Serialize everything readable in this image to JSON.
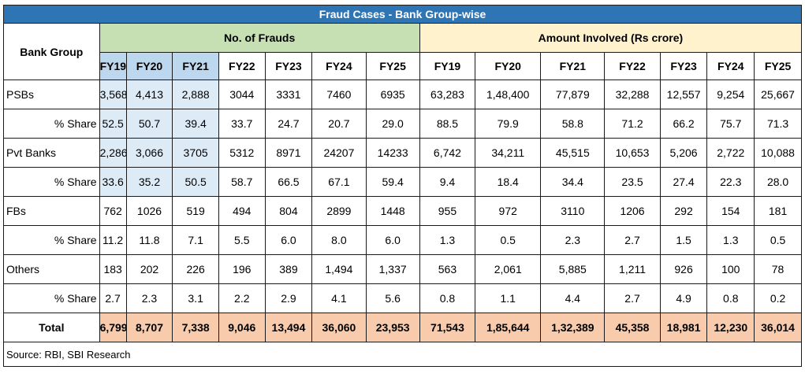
{
  "title": "Fraud Cases - Bank Group-wise",
  "row_header": "Bank Group",
  "group_frauds": "No. of Frauds",
  "group_amount": "Amount Involved (Rs crore)",
  "years": [
    "FY19",
    "FY20",
    "FY21",
    "FY22",
    "FY23",
    "FY24",
    "FY25"
  ],
  "source": "Source: RBI, SBI Research",
  "colors": {
    "title_bg": "#2e75b6",
    "frauds_header": "#c6e0b4",
    "amount_header": "#fff2cc",
    "highlight": "#ddebf7",
    "total_row": "#f8cbad"
  },
  "chart_data": {
    "type": "table",
    "title": "Fraud Cases - Bank Group-wise",
    "column_groups": [
      {
        "name": "No. of Frauds",
        "columns": [
          "FY19",
          "FY20",
          "FY21",
          "FY22",
          "FY23",
          "FY24",
          "FY25"
        ]
      },
      {
        "name": "Amount Involved (Rs crore)",
        "columns": [
          "FY19",
          "FY20",
          "FY21",
          "FY22",
          "FY23",
          "FY24",
          "FY25"
        ]
      }
    ],
    "rows": [
      {
        "label": "PSBs",
        "type": "group",
        "values": [
          "3,568",
          "4,413",
          "2,888",
          "3044",
          "3331",
          "7460",
          "6935",
          "63,283",
          "1,48,400",
          "77,879",
          "32,288",
          "12,557",
          "9,254",
          "25,667"
        ]
      },
      {
        "label": "% Share",
        "type": "share",
        "values": [
          "52.5",
          "50.7",
          "39.4",
          "33.7",
          "24.7",
          "20.7",
          "29.0",
          "88.5",
          "79.9",
          "58.8",
          "71.2",
          "66.2",
          "75.7",
          "71.3"
        ]
      },
      {
        "label": "Pvt Banks",
        "type": "group",
        "values": [
          "2,286",
          "3,066",
          "3705",
          "5312",
          "8971",
          "24207",
          "14233",
          "6,742",
          "34,211",
          "45,515",
          "10,653",
          "5,206",
          "2,722",
          "10,088"
        ]
      },
      {
        "label": "% Share",
        "type": "share",
        "values": [
          "33.6",
          "35.2",
          "50.5",
          "58.7",
          "66.5",
          "67.1",
          "59.4",
          "9.4",
          "18.4",
          "34.4",
          "23.5",
          "27.4",
          "22.3",
          "28.0"
        ]
      },
      {
        "label": "FBs",
        "type": "group",
        "values": [
          "762",
          "1026",
          "519",
          "494",
          "804",
          "2899",
          "1448",
          "955",
          "972",
          "3110",
          "1206",
          "292",
          "154",
          "181"
        ]
      },
      {
        "label": "% Share",
        "type": "share",
        "values": [
          "11.2",
          "11.8",
          "7.1",
          "5.5",
          "6.0",
          "8.0",
          "6.0",
          "1.3",
          "0.5",
          "2.3",
          "2.7",
          "1.5",
          "1.3",
          "0.5"
        ]
      },
      {
        "label": "Others",
        "type": "group",
        "values": [
          "183",
          "202",
          "226",
          "196",
          "389",
          "1,494",
          "1,337",
          "563",
          "2,061",
          "5,885",
          "1,211",
          "926",
          "100",
          "78"
        ]
      },
      {
        "label": "% Share",
        "type": "share",
        "values": [
          "2.7",
          "2.3",
          "3.1",
          "2.2",
          "2.9",
          "4.1",
          "5.6",
          "0.8",
          "1.1",
          "4.4",
          "2.7",
          "4.9",
          "0.8",
          "0.2"
        ]
      },
      {
        "label": "Total",
        "type": "total",
        "values": [
          "6,799",
          "8,707",
          "7,338",
          "9,046",
          "13,494",
          "36,060",
          "23,953",
          "71,543",
          "1,85,644",
          "1,32,389",
          "45,358",
          "18,981",
          "12,230",
          "36,014"
        ]
      }
    ],
    "highlighted": {
      "rows": [
        0,
        1,
        2,
        3
      ],
      "columns": [
        0,
        1,
        2
      ]
    }
  }
}
